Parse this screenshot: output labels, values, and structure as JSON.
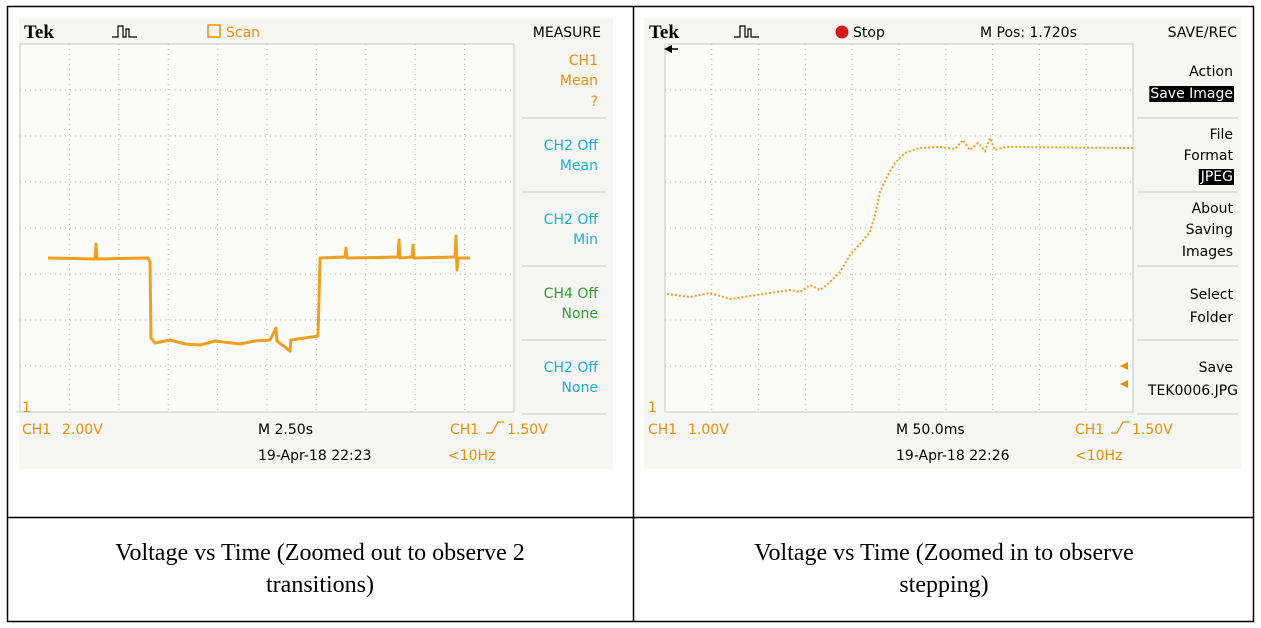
{
  "scopes": [
    {
      "brand": "Tek",
      "status": "Scan",
      "menu_title": "MEASURE",
      "menu": [
        [
          "CH1",
          "Mean",
          "?"
        ],
        [
          "CH2 Off",
          "Mean"
        ],
        [
          "CH2 Off",
          "Min"
        ],
        [
          "CH4 Off",
          "None"
        ],
        [
          "CH2 Off",
          "None"
        ]
      ],
      "marker": "1",
      "channel": "CH1",
      "scale": "2.00V",
      "timebase": "M 2.50s",
      "trigger_source": "CH1",
      "trigger_level": "1.50V",
      "datetime": "19-Apr-18 22:23",
      "frequency": "<10Hz"
    },
    {
      "brand": "Tek",
      "status": "Stop",
      "position": "M Pos: 1.720s",
      "menu_title": "SAVE/REC",
      "menu": [
        [
          "Action",
          "Save Image"
        ],
        [
          "File",
          "Format",
          "JPEG"
        ],
        [
          "About",
          "Saving",
          "Images"
        ],
        [
          "Select",
          "Folder"
        ],
        [
          "Save",
          "TEK0006.JPG"
        ]
      ],
      "marker": "1",
      "channel": "CH1",
      "scale": "1.00V",
      "timebase": "M 50.0ms",
      "trigger_source": "CH1",
      "trigger_level": "1.50V",
      "datetime": "19-Apr-18 22:26",
      "frequency": "<10Hz"
    }
  ],
  "captions": [
    [
      "Voltage vs Time (Zoomed out to observe 2",
      "transitions)"
    ],
    [
      "Voltage vs Time (Zoomed in to observe",
      "stepping)"
    ]
  ]
}
